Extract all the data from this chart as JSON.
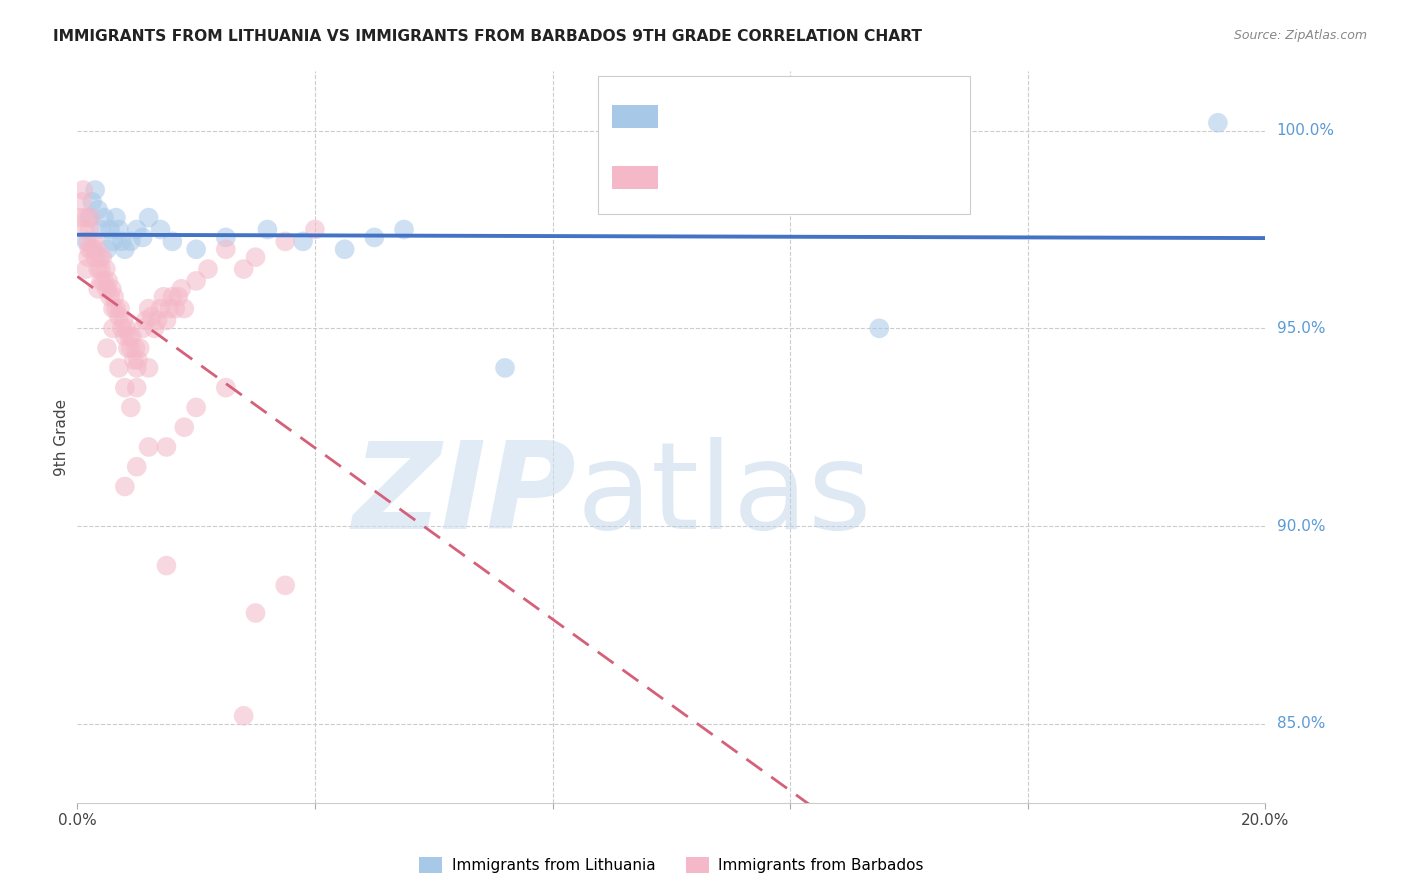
{
  "title": "IMMIGRANTS FROM LITHUANIA VS IMMIGRANTS FROM BARBADOS 9TH GRADE CORRELATION CHART",
  "source": "Source: ZipAtlas.com",
  "ylabel": "9th Grade",
  "y_ticks_right": [
    85.0,
    90.0,
    95.0,
    100.0
  ],
  "x_lim": [
    0.0,
    20.0
  ],
  "y_lim": [
    83.0,
    101.5
  ],
  "legend_label1": "Immigrants from Lithuania",
  "legend_label2": "Immigrants from Barbados",
  "color_blue": "#a8c8e8",
  "color_pink": "#f4b8c8",
  "color_blue_line": "#4472c4",
  "color_pink_line": "#d4607a",
  "color_axis_right": "#5b9bd5",
  "color_legend_text_blue": "#5b9bd5",
  "color_legend_text_pink": "#d4607a",
  "lithuania_x": [
    0.15,
    0.2,
    0.25,
    0.3,
    0.35,
    0.4,
    0.45,
    0.5,
    0.55,
    0.6,
    0.65,
    0.7,
    0.75,
    0.8,
    0.9,
    1.0,
    1.1,
    1.2,
    1.4,
    1.6,
    2.0,
    2.5,
    3.2,
    3.8,
    4.5,
    5.0,
    5.5,
    7.2,
    13.5,
    19.2
  ],
  "lithuania_y": [
    97.2,
    97.8,
    98.2,
    98.5,
    98.0,
    97.5,
    97.8,
    97.0,
    97.5,
    97.2,
    97.8,
    97.5,
    97.2,
    97.0,
    97.2,
    97.5,
    97.3,
    97.8,
    97.5,
    97.2,
    97.0,
    97.3,
    97.5,
    97.2,
    97.0,
    97.3,
    97.5,
    94.0,
    95.0,
    100.2
  ],
  "barbados_x": [
    0.05,
    0.08,
    0.1,
    0.12,
    0.15,
    0.18,
    0.2,
    0.22,
    0.25,
    0.28,
    0.3,
    0.32,
    0.35,
    0.38,
    0.4,
    0.42,
    0.45,
    0.48,
    0.5,
    0.52,
    0.55,
    0.58,
    0.6,
    0.62,
    0.65,
    0.7,
    0.72,
    0.75,
    0.78,
    0.8,
    0.82,
    0.85,
    0.88,
    0.9,
    0.92,
    0.95,
    0.98,
    1.0,
    1.02,
    1.05,
    1.1,
    1.15,
    1.2,
    1.25,
    1.3,
    1.35,
    1.4,
    1.45,
    1.5,
    1.55,
    1.6,
    1.65,
    1.7,
    1.75,
    1.8,
    2.0,
    2.2,
    2.5,
    2.8,
    3.0,
    3.5,
    4.0,
    1.5,
    1.8,
    2.0,
    0.8,
    1.0,
    1.2,
    0.5,
    0.6,
    0.7,
    0.8,
    0.9,
    1.0,
    1.2,
    1.5,
    2.5,
    3.0,
    3.5,
    0.15,
    0.18,
    0.2,
    0.35,
    0.4,
    2.8
  ],
  "barbados_y": [
    97.8,
    98.2,
    98.5,
    97.5,
    97.8,
    97.2,
    97.5,
    97.8,
    97.0,
    97.2,
    96.8,
    97.0,
    96.5,
    96.8,
    96.5,
    96.8,
    96.2,
    96.5,
    96.0,
    96.2,
    95.8,
    96.0,
    95.5,
    95.8,
    95.5,
    95.3,
    95.5,
    95.0,
    95.2,
    94.8,
    95.0,
    94.5,
    94.8,
    94.5,
    94.8,
    94.2,
    94.5,
    94.0,
    94.2,
    94.5,
    95.0,
    95.2,
    95.5,
    95.3,
    95.0,
    95.2,
    95.5,
    95.8,
    95.2,
    95.5,
    95.8,
    95.5,
    95.8,
    96.0,
    95.5,
    96.2,
    96.5,
    97.0,
    96.5,
    96.8,
    97.2,
    97.5,
    92.0,
    92.5,
    93.0,
    91.0,
    91.5,
    92.0,
    94.5,
    95.0,
    94.0,
    93.5,
    93.0,
    93.5,
    94.0,
    89.0,
    93.5,
    87.8,
    88.5,
    96.5,
    96.8,
    97.0,
    96.0,
    96.2,
    85.2
  ]
}
